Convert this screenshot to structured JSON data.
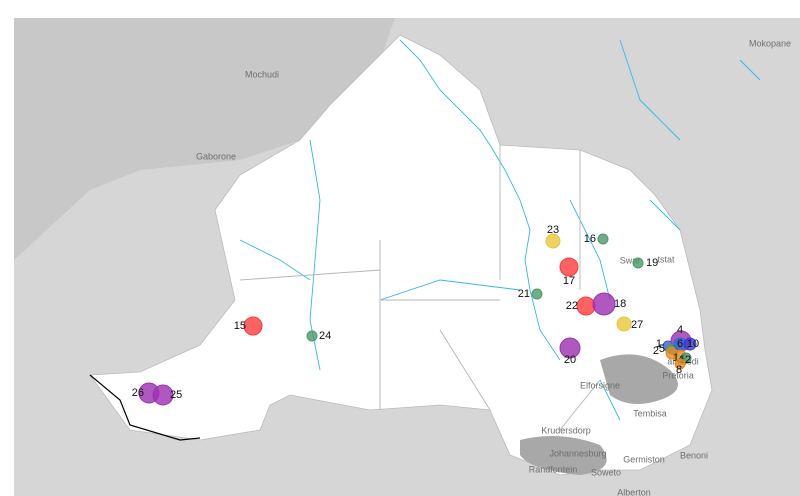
{
  "places": [
    "Mokopane",
    "Mochudi",
    "Gaborone",
    "Swar",
    "tstat",
    "Elforsigne",
    "amelodi",
    "Pretoria",
    "Tembisa",
    "Krudersdorp",
    "Johannesburg",
    "Randfontein",
    "Soweto",
    "Germiston",
    "Benoni",
    "Alberton"
  ],
  "markers": [
    {
      "label": "15",
      "color": "#ff3b3b"
    },
    {
      "label": "24",
      "color": "#4c9a6a"
    },
    {
      "label": "26",
      "color": "#9b30b0"
    },
    {
      "label": "25",
      "color": "#9b30b0"
    },
    {
      "label": "23",
      "color": "#e8c53a"
    },
    {
      "label": "16",
      "color": "#4c9a6a"
    },
    {
      "label": "19",
      "color": "#4c9a6a"
    },
    {
      "label": "17",
      "color": "#ff3b3b"
    },
    {
      "label": "21",
      "color": "#4c9a6a"
    },
    {
      "label": "22",
      "color": "#ff3b3b"
    },
    {
      "label": "18",
      "color": "#9b30b0"
    },
    {
      "label": "27",
      "color": "#e8c53a"
    },
    {
      "label": "20",
      "color": "#9b30b0"
    },
    {
      "label": "4",
      "color": "#9b30b0"
    },
    {
      "label": "1",
      "color": "#3a5fcd"
    },
    {
      "label": "5",
      "color": "#4c9a6a"
    },
    {
      "label": "2",
      "color": "#e08a1e"
    },
    {
      "label": "6",
      "color": "#2a6ad0"
    },
    {
      "label": "10",
      "color": "#3a3ad0"
    },
    {
      "label": "14",
      "color": "#e08a1e"
    },
    {
      "label": "12",
      "color": "#4c9a6a"
    },
    {
      "label": "8",
      "color": "#e08a1e"
    }
  ]
}
